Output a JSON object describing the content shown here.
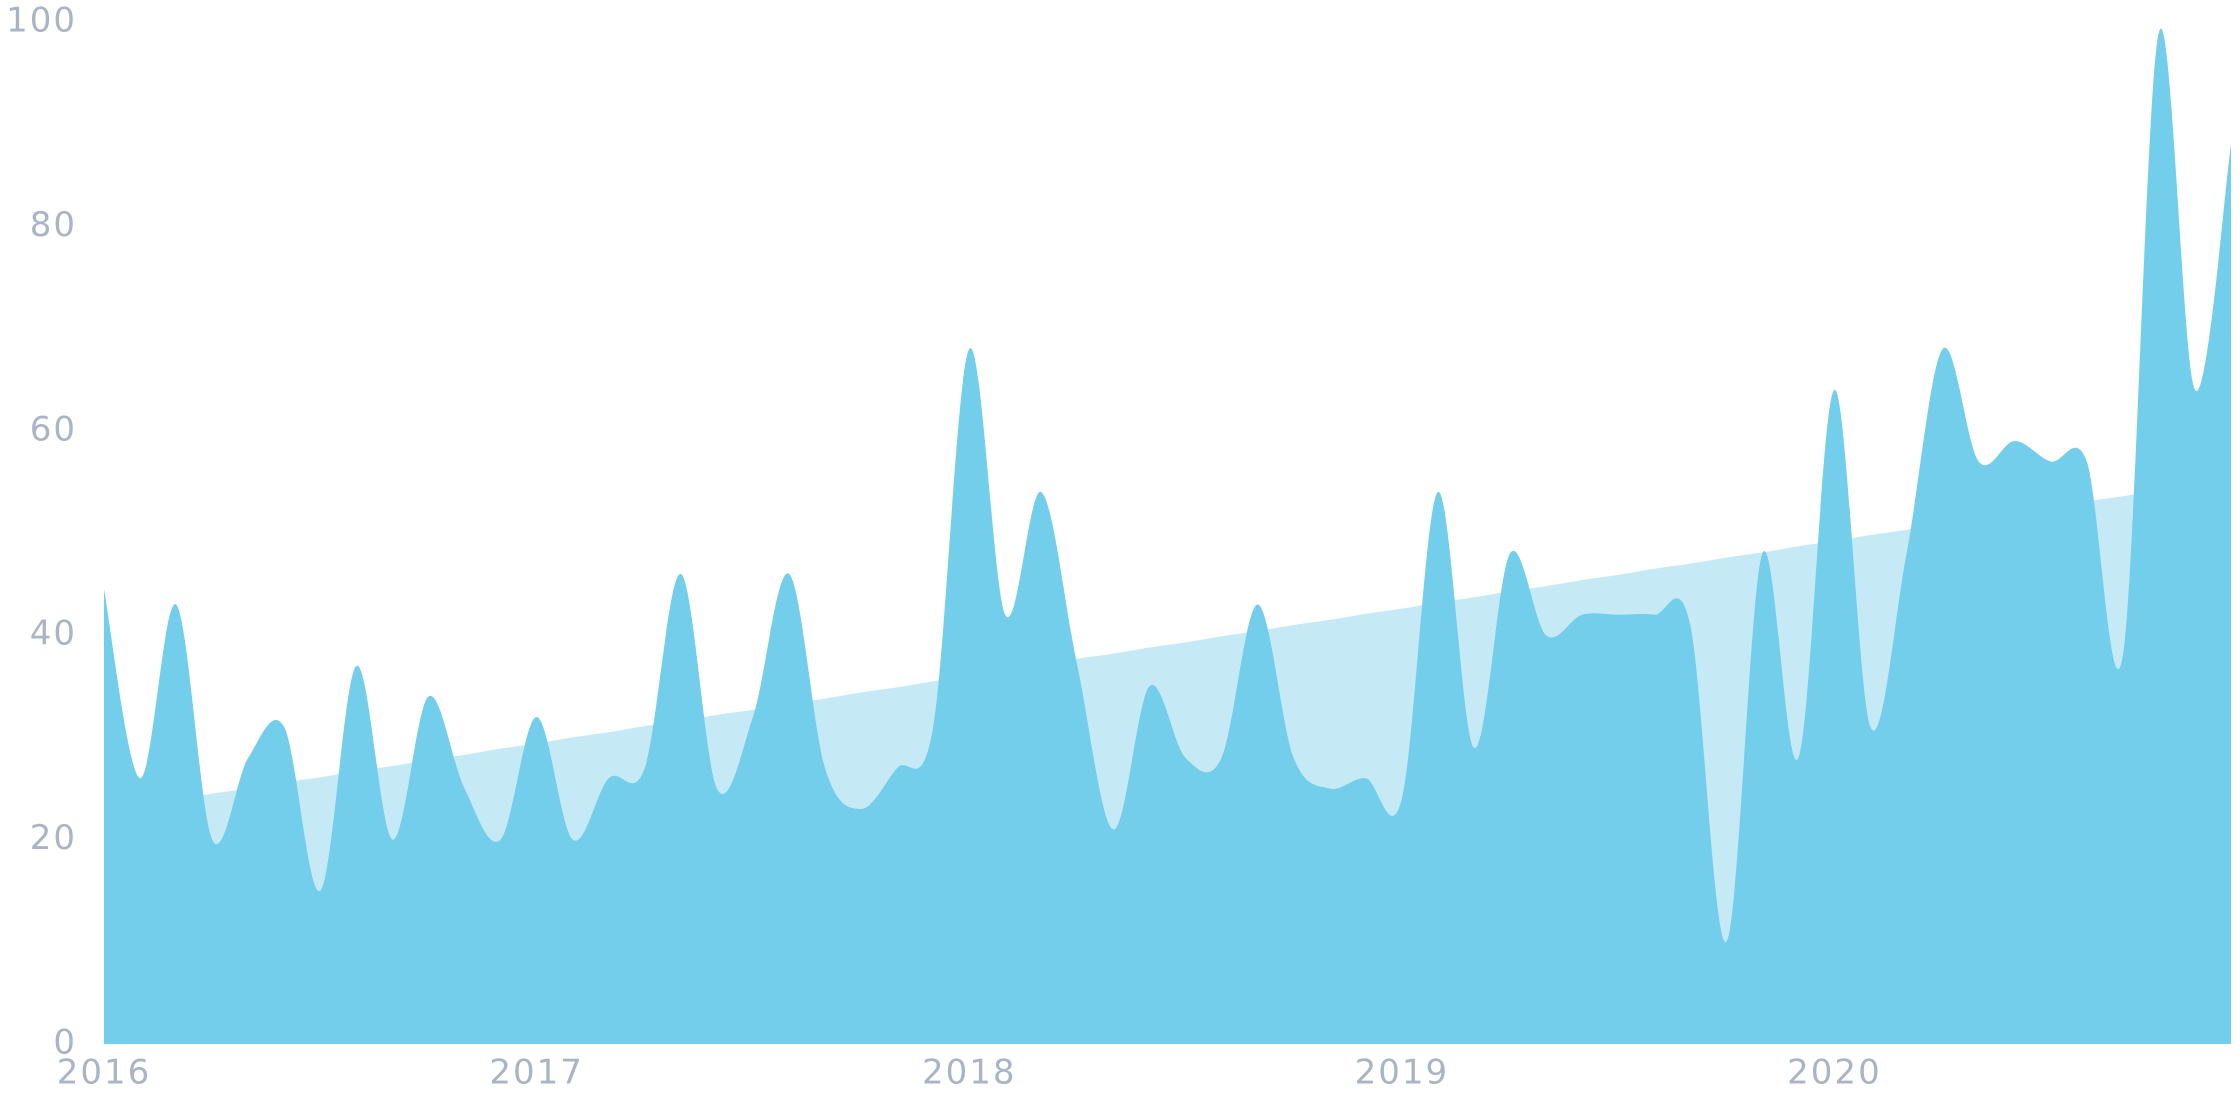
{
  "chart_data": {
    "type": "area",
    "categories": [
      "2016",
      null,
      null,
      null,
      null,
      null,
      null,
      null,
      null,
      null,
      null,
      null,
      "2017",
      null,
      null,
      null,
      null,
      null,
      null,
      null,
      null,
      null,
      null,
      null,
      "2018",
      null,
      null,
      null,
      null,
      null,
      null,
      null,
      null,
      null,
      null,
      null,
      "2019",
      null,
      null,
      null,
      null,
      null,
      null,
      null,
      null,
      null,
      null,
      null,
      "2020",
      null,
      null,
      null,
      null,
      null,
      null,
      null,
      null,
      null,
      null,
      null
    ],
    "series": [
      {
        "color": "#c5eaf6",
        "values": [
          22.8,
          23.4,
          23.9,
          24.5,
          25.0,
          25.6,
          26.1,
          26.7,
          27.2,
          27.8,
          28.3,
          28.9,
          29.4,
          30.0,
          30.5,
          31.1,
          31.6,
          32.2,
          32.7,
          33.3,
          33.8,
          34.4,
          34.9,
          35.5,
          36.0,
          36.6,
          37.1,
          37.7,
          38.2,
          38.8,
          39.3,
          39.9,
          40.4,
          41.0,
          41.5,
          42.1,
          42.6,
          43.2,
          43.7,
          44.3,
          44.8,
          45.4,
          45.9,
          46.5,
          47.0,
          47.6,
          48.1,
          48.7,
          49.2,
          49.8,
          50.3,
          50.9,
          51.4,
          52.0,
          52.5,
          53.1,
          53.6,
          54.2,
          54.7,
          55.3
        ]
      },
      {
        "color": "#72ceea",
        "values": [
          44.5,
          26,
          43,
          20,
          28,
          31,
          15,
          37,
          20,
          34,
          25,
          20,
          32,
          20,
          26,
          27,
          46,
          25,
          32,
          46,
          27,
          23,
          27,
          31,
          68,
          42,
          54,
          37,
          21,
          35,
          28,
          28,
          43,
          28,
          25,
          26,
          24,
          54,
          29,
          48,
          40,
          42,
          42,
          42,
          41,
          10,
          48,
          28,
          64,
          31,
          48,
          68,
          57,
          59,
          57,
          57,
          38,
          99,
          64,
          88
        ]
      }
    ],
    "ylim": [
      0,
      100
    ],
    "yticks": [
      0,
      20,
      40,
      60,
      80,
      100
    ]
  }
}
